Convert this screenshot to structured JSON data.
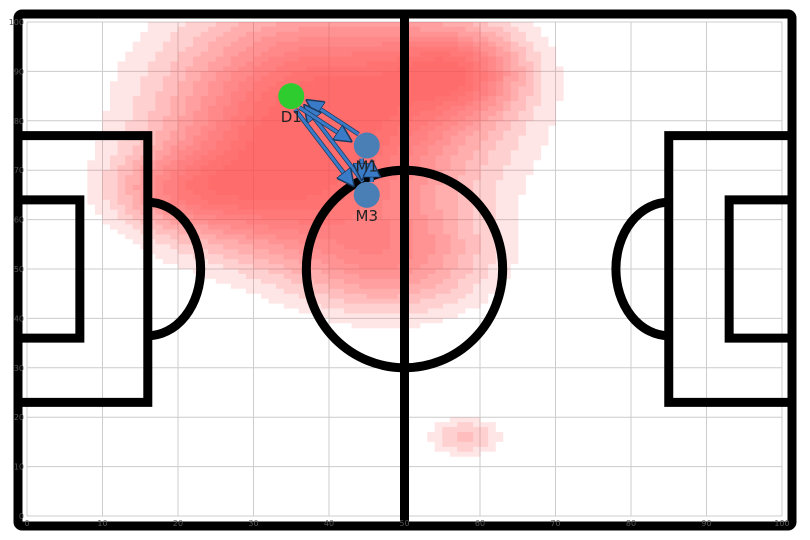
{
  "chart_data": {
    "type": "scatter",
    "title": "",
    "xlabel": "",
    "ylabel": "",
    "xlim": [
      0,
      100
    ],
    "ylim": [
      0,
      100
    ],
    "grid": true,
    "x_ticks": [
      "0",
      "10",
      "20",
      "30",
      "40",
      "50",
      "60",
      "70",
      "80",
      "90",
      "100"
    ],
    "y_ticks": [
      "0",
      "10",
      "20",
      "30",
      "40",
      "50",
      "60",
      "70",
      "80",
      "90",
      "100"
    ],
    "players": [
      {
        "label": "D1",
        "x": 35,
        "y": 85,
        "color": "#2ecc2e"
      },
      {
        "label": "M1",
        "x": 45,
        "y": 75,
        "color": "#4a7fb5"
      },
      {
        "label": "M3",
        "x": 45,
        "y": 65,
        "color": "#4a7fb5"
      }
    ],
    "passes": [
      {
        "from": "M1",
        "to": "D1"
      },
      {
        "from": "M3",
        "to": "D1"
      },
      {
        "from": "D1",
        "to": "M1"
      },
      {
        "from": "D1",
        "to": "M3"
      },
      {
        "from": "M1",
        "to": "M3"
      },
      {
        "from": "M3",
        "to": "M1"
      }
    ],
    "heatmap": {
      "color": "#ff4d4d",
      "blobs": [
        {
          "x": 40,
          "y": 82,
          "sx": 14,
          "sy": 15,
          "w": 1.0
        },
        {
          "x": 57,
          "y": 90,
          "sx": 6,
          "sy": 6,
          "w": 0.55
        },
        {
          "x": 30,
          "y": 65,
          "sx": 10,
          "sy": 9,
          "w": 0.45
        },
        {
          "x": 48,
          "y": 52,
          "sx": 9,
          "sy": 8,
          "w": 0.5
        },
        {
          "x": 20,
          "y": 66,
          "sx": 6,
          "sy": 5,
          "w": 0.3
        },
        {
          "x": 58,
          "y": 16,
          "sx": 3.5,
          "sy": 3,
          "w": 0.3
        }
      ]
    },
    "pitch_line_color": "#000000",
    "grid_color": "#cccccc"
  }
}
